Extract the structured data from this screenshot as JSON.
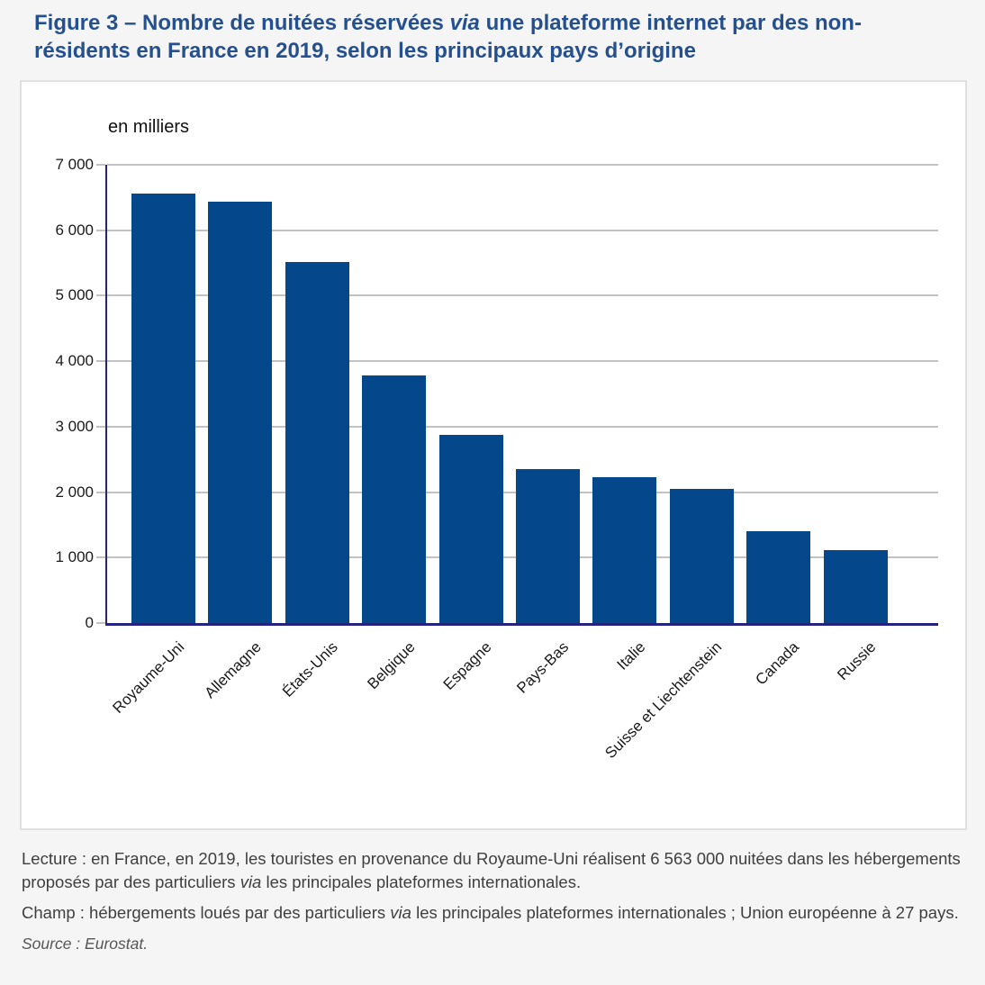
{
  "title": {
    "part1": "Figure 3 – Nombre de nuitées réservées ",
    "italic": "via",
    "part2": " une plateforme internet par des non-résidents en France en 2019, selon les principaux pays d’origine"
  },
  "chart": {
    "unit_label": "en milliers"
  },
  "chart_data": {
    "type": "bar",
    "title": "Nombre de nuitées réservées via une plateforme internet par des non-résidents en France en 2019, selon les principaux pays d’origine",
    "unit": "en milliers",
    "categories": [
      "Royaume-Uni",
      "Allemagne",
      "États-Unis",
      "Belgique",
      "Espagne",
      "Pays-Bas",
      "Italie",
      "Suisse et Liechtenstein",
      "Canada",
      "Russie"
    ],
    "values": [
      6563,
      6440,
      5515,
      3780,
      2870,
      2350,
      2230,
      2050,
      1400,
      1120
    ],
    "xlabel": "",
    "ylabel": "en milliers",
    "ylim": [
      0,
      7000
    ],
    "ytick_step": 1000,
    "ytick_labels": [
      "0",
      "1 000",
      "2 000",
      "3 000",
      "4 000",
      "5 000",
      "6 000",
      "7 000"
    ],
    "grid": true,
    "legend": "none",
    "bar_color": "#04478a",
    "axis_color": "#24247f",
    "grid_color": "#c2c2c2"
  },
  "notes": {
    "lecture": {
      "part1": "Lecture : en France, en 2019, les touristes en provenance du Royaume-Uni réalisent 6 563 000 nuitées dans les hébergements proposés par des particuliers ",
      "italic": "via",
      "part2": " les principales plateformes internationales."
    },
    "champ": {
      "part1": "Champ : hébergements loués par des particuliers ",
      "italic": "via",
      "part2": " les principales plateformes internationales ; Union européenne à 27 pays."
    },
    "source": "Source : Eurostat."
  },
  "colors": {
    "page_background": "#f5f5f6",
    "panel_background": "#ffffff",
    "panel_border": "#e0e0e0",
    "title_text": "#24508f",
    "note_text": "#3f3f3f"
  }
}
